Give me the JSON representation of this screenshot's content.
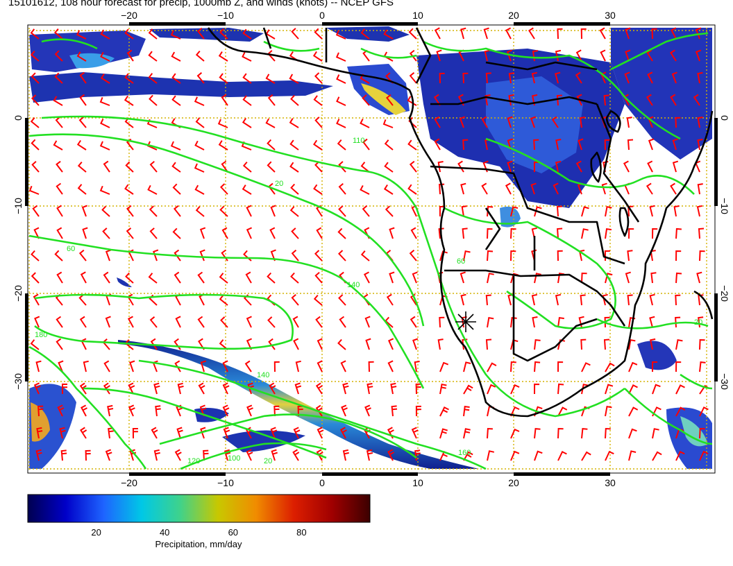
{
  "title": "15101612, 108 hour forecast for precip, 1000mb Z, and winds (knots) -- NCEP GFS",
  "map": {
    "lon_range": [
      -30,
      40
    ],
    "lat_range": [
      -40,
      10
    ],
    "lon_ticks": [
      -20,
      -10,
      0,
      10,
      20,
      30
    ],
    "lat_ticks": [
      0,
      -10,
      -20,
      -30
    ],
    "lon_tick_labels": [
      "−20",
      "−10",
      "0",
      "10",
      "20",
      "30"
    ],
    "lat_tick_labels": [
      "0",
      "−10",
      "−20",
      "−30"
    ],
    "colors": {
      "graticule": "#d4b200",
      "contour": "#22e022",
      "barb": "#ff0000",
      "coast": "#000000",
      "precip_low": "#1530c0",
      "precip_high": "#8a0000"
    },
    "contour_labels": [
      "20",
      "60",
      "100",
      "110",
      "120",
      "140",
      "160",
      "180"
    ],
    "marker": {
      "name": "station-marker",
      "lon": 15,
      "lat": -24
    }
  },
  "colorbar": {
    "min": 0,
    "max": 100,
    "ticks": [
      "20",
      "40",
      "60",
      "80"
    ],
    "tick_values": [
      20,
      40,
      60,
      80
    ],
    "label": "Precipitation, mm/day",
    "stops": [
      "#000050",
      "#0000c8",
      "#1e64ff",
      "#00c8e6",
      "#3ed28c",
      "#c8c800",
      "#f08c00",
      "#dc1e00",
      "#a00000",
      "#3c0000"
    ]
  }
}
